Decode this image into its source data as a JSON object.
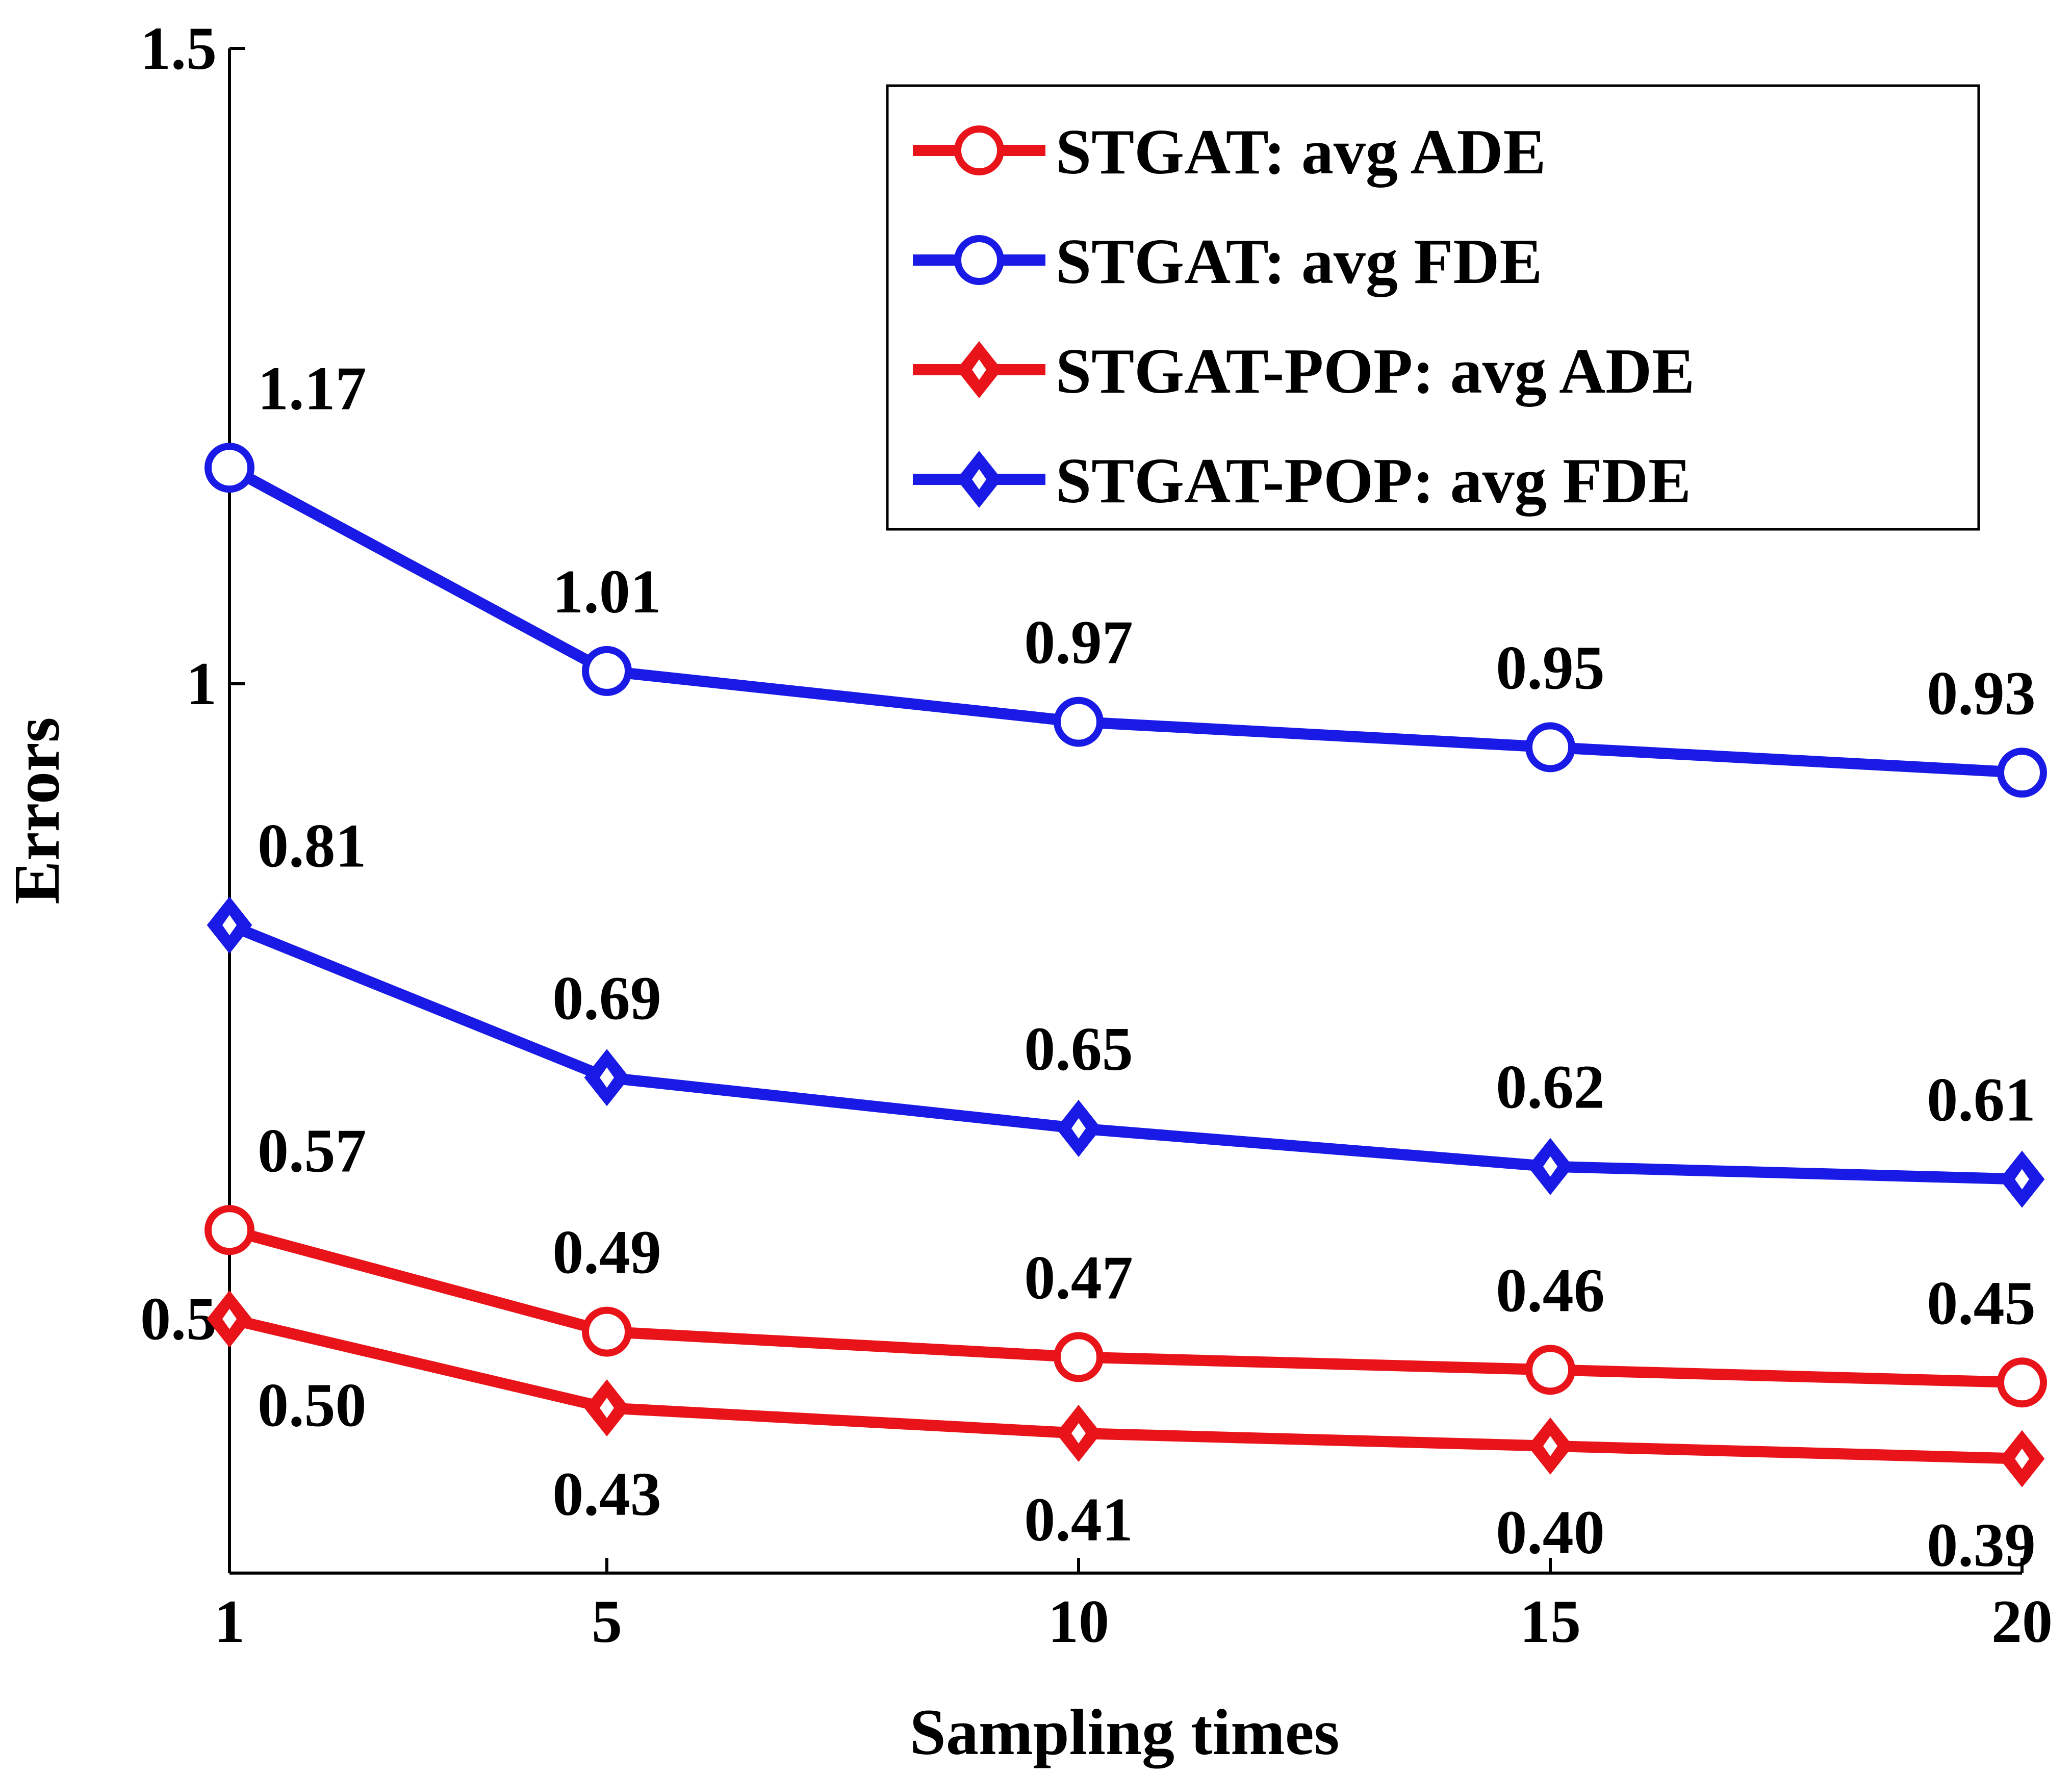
{
  "chart_data": {
    "type": "line",
    "title": "",
    "xlabel": "Sampling times",
    "ylabel": "Errors",
    "x": [
      1,
      5,
      10,
      15,
      20
    ],
    "x_tick_labels": [
      "1",
      "5",
      "10",
      "15",
      "20"
    ],
    "y_ticks": [
      0.5,
      1,
      1.5
    ],
    "y_tick_labels": [
      "0.5",
      "1",
      "1.5"
    ],
    "xlim": [
      1,
      20
    ],
    "ylim": [
      0.3,
      1.5
    ],
    "grid": false,
    "legend_position": "top-right",
    "series": [
      {
        "name": "STGAT: avg ADE",
        "color": "#e8141a",
        "marker": "circle",
        "values": [
          0.57,
          0.49,
          0.47,
          0.46,
          0.45
        ],
        "labels": [
          "0.57",
          "0.49",
          "0.47",
          "0.46",
          "0.45"
        ],
        "label_side": "above"
      },
      {
        "name": "STGAT: avg FDE",
        "color": "#1a1ae6",
        "marker": "circle",
        "values": [
          1.17,
          1.01,
          0.97,
          0.95,
          0.93
        ],
        "labels": [
          "1.17",
          "1.01",
          "0.97",
          "0.95",
          "0.93"
        ],
        "label_side": "above"
      },
      {
        "name": "STGAT-POP: avg ADE",
        "color": "#e8141a",
        "marker": "diamond",
        "values": [
          0.5,
          0.43,
          0.41,
          0.4,
          0.39
        ],
        "labels": [
          "0.50",
          "0.43",
          "0.41",
          "0.40",
          "0.39"
        ],
        "label_side": "below"
      },
      {
        "name": "STGAT-POP: avg FDE",
        "color": "#1a1ae6",
        "marker": "diamond",
        "values": [
          0.81,
          0.69,
          0.65,
          0.62,
          0.61
        ],
        "labels": [
          "0.81",
          "0.69",
          "0.65",
          "0.62",
          "0.61"
        ],
        "label_side": "above"
      }
    ]
  }
}
